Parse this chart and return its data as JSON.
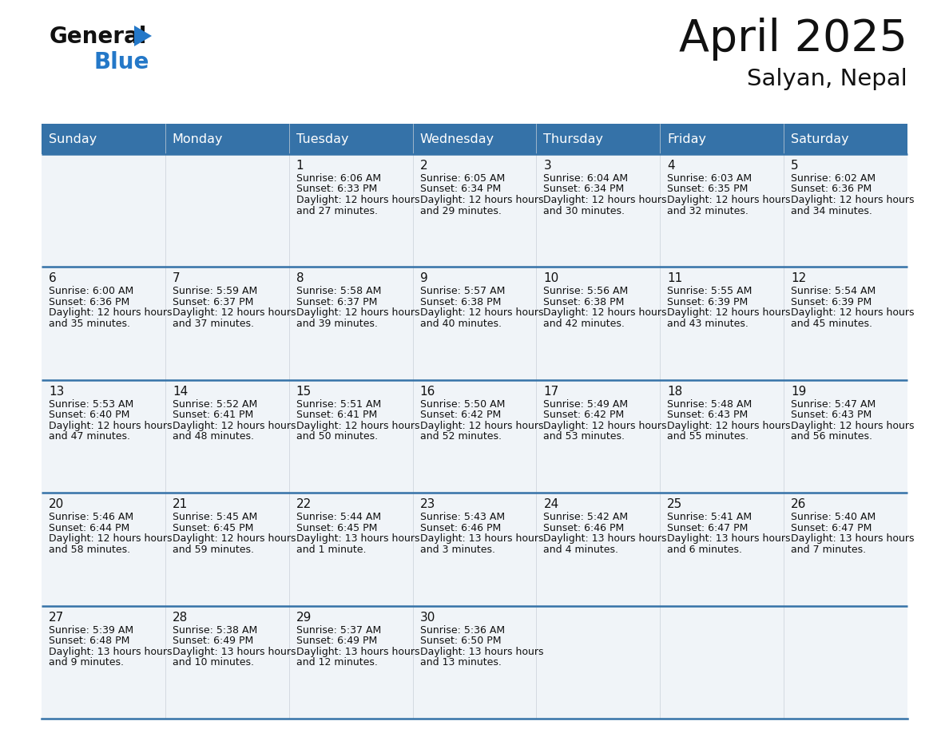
{
  "title": "April 2025",
  "subtitle": "Salyan, Nepal",
  "header_bg_color": "#3572a8",
  "header_text_color": "#ffffff",
  "cell_bg_color": "#f0f4f8",
  "border_color": "#3572a8",
  "text_color": "#222222",
  "days_of_week": [
    "Sunday",
    "Monday",
    "Tuesday",
    "Wednesday",
    "Thursday",
    "Friday",
    "Saturday"
  ],
  "calendar_data": [
    [
      {
        "day": "",
        "sunrise": "",
        "sunset": "",
        "daylight": ""
      },
      {
        "day": "",
        "sunrise": "",
        "sunset": "",
        "daylight": ""
      },
      {
        "day": "1",
        "sunrise": "6:06 AM",
        "sunset": "6:33 PM",
        "daylight": "12 hours and 27 minutes."
      },
      {
        "day": "2",
        "sunrise": "6:05 AM",
        "sunset": "6:34 PM",
        "daylight": "12 hours and 29 minutes."
      },
      {
        "day": "3",
        "sunrise": "6:04 AM",
        "sunset": "6:34 PM",
        "daylight": "12 hours and 30 minutes."
      },
      {
        "day": "4",
        "sunrise": "6:03 AM",
        "sunset": "6:35 PM",
        "daylight": "12 hours and 32 minutes."
      },
      {
        "day": "5",
        "sunrise": "6:02 AM",
        "sunset": "6:36 PM",
        "daylight": "12 hours and 34 minutes."
      }
    ],
    [
      {
        "day": "6",
        "sunrise": "6:00 AM",
        "sunset": "6:36 PM",
        "daylight": "12 hours and 35 minutes."
      },
      {
        "day": "7",
        "sunrise": "5:59 AM",
        "sunset": "6:37 PM",
        "daylight": "12 hours and 37 minutes."
      },
      {
        "day": "8",
        "sunrise": "5:58 AM",
        "sunset": "6:37 PM",
        "daylight": "12 hours and 39 minutes."
      },
      {
        "day": "9",
        "sunrise": "5:57 AM",
        "sunset": "6:38 PM",
        "daylight": "12 hours and 40 minutes."
      },
      {
        "day": "10",
        "sunrise": "5:56 AM",
        "sunset": "6:38 PM",
        "daylight": "12 hours and 42 minutes."
      },
      {
        "day": "11",
        "sunrise": "5:55 AM",
        "sunset": "6:39 PM",
        "daylight": "12 hours and 43 minutes."
      },
      {
        "day": "12",
        "sunrise": "5:54 AM",
        "sunset": "6:39 PM",
        "daylight": "12 hours and 45 minutes."
      }
    ],
    [
      {
        "day": "13",
        "sunrise": "5:53 AM",
        "sunset": "6:40 PM",
        "daylight": "12 hours and 47 minutes."
      },
      {
        "day": "14",
        "sunrise": "5:52 AM",
        "sunset": "6:41 PM",
        "daylight": "12 hours and 48 minutes."
      },
      {
        "day": "15",
        "sunrise": "5:51 AM",
        "sunset": "6:41 PM",
        "daylight": "12 hours and 50 minutes."
      },
      {
        "day": "16",
        "sunrise": "5:50 AM",
        "sunset": "6:42 PM",
        "daylight": "12 hours and 52 minutes."
      },
      {
        "day": "17",
        "sunrise": "5:49 AM",
        "sunset": "6:42 PM",
        "daylight": "12 hours and 53 minutes."
      },
      {
        "day": "18",
        "sunrise": "5:48 AM",
        "sunset": "6:43 PM",
        "daylight": "12 hours and 55 minutes."
      },
      {
        "day": "19",
        "sunrise": "5:47 AM",
        "sunset": "6:43 PM",
        "daylight": "12 hours and 56 minutes."
      }
    ],
    [
      {
        "day": "20",
        "sunrise": "5:46 AM",
        "sunset": "6:44 PM",
        "daylight": "12 hours and 58 minutes."
      },
      {
        "day": "21",
        "sunrise": "5:45 AM",
        "sunset": "6:45 PM",
        "daylight": "12 hours and 59 minutes."
      },
      {
        "day": "22",
        "sunrise": "5:44 AM",
        "sunset": "6:45 PM",
        "daylight": "13 hours and 1 minute."
      },
      {
        "day": "23",
        "sunrise": "5:43 AM",
        "sunset": "6:46 PM",
        "daylight": "13 hours and 3 minutes."
      },
      {
        "day": "24",
        "sunrise": "5:42 AM",
        "sunset": "6:46 PM",
        "daylight": "13 hours and 4 minutes."
      },
      {
        "day": "25",
        "sunrise": "5:41 AM",
        "sunset": "6:47 PM",
        "daylight": "13 hours and 6 minutes."
      },
      {
        "day": "26",
        "sunrise": "5:40 AM",
        "sunset": "6:47 PM",
        "daylight": "13 hours and 7 minutes."
      }
    ],
    [
      {
        "day": "27",
        "sunrise": "5:39 AM",
        "sunset": "6:48 PM",
        "daylight": "13 hours and 9 minutes."
      },
      {
        "day": "28",
        "sunrise": "5:38 AM",
        "sunset": "6:49 PM",
        "daylight": "13 hours and 10 minutes."
      },
      {
        "day": "29",
        "sunrise": "5:37 AM",
        "sunset": "6:49 PM",
        "daylight": "13 hours and 12 minutes."
      },
      {
        "day": "30",
        "sunrise": "5:36 AM",
        "sunset": "6:50 PM",
        "daylight": "13 hours and 13 minutes."
      },
      {
        "day": "",
        "sunrise": "",
        "sunset": "",
        "daylight": ""
      },
      {
        "day": "",
        "sunrise": "",
        "sunset": "",
        "daylight": ""
      },
      {
        "day": "",
        "sunrise": "",
        "sunset": "",
        "daylight": ""
      }
    ]
  ],
  "logo_text_general": "General",
  "logo_text_blue": "Blue",
  "logo_color_general": "#111111",
  "logo_color_blue": "#2478c8",
  "logo_triangle_color": "#2478c8",
  "fig_width": 11.88,
  "fig_height": 9.18,
  "dpi": 100
}
